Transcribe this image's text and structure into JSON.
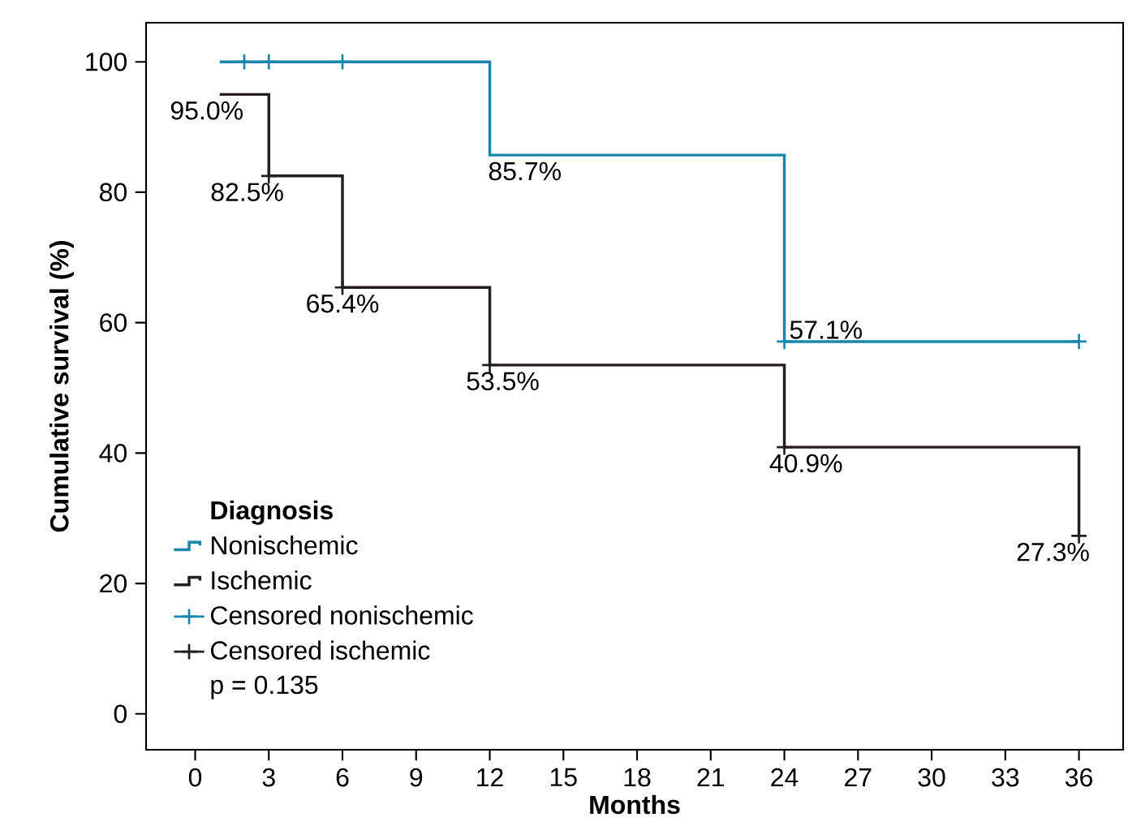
{
  "chart_data": {
    "type": "step",
    "xlabel": "Months",
    "ylabel": "Cumulative survival (%)",
    "legend_title": "Diagnosis",
    "xlim": [
      -2,
      37.8
    ],
    "ylim": [
      -5.5,
      106
    ],
    "xticks": [
      0,
      3,
      6,
      9,
      12,
      15,
      18,
      21,
      24,
      27,
      30,
      33,
      36
    ],
    "yticks": [
      0,
      20,
      40,
      60,
      80,
      100
    ],
    "grid": false,
    "legend": "bottom left",
    "series": [
      {
        "name": "Nonischemic",
        "color": "#1a87aa",
        "x": [
          1,
          12,
          24,
          36
        ],
        "values": [
          100,
          85.7,
          57.1,
          57.1
        ]
      },
      {
        "name": "Ischemic",
        "color": "#231f20",
        "x": [
          1,
          3,
          6,
          12,
          24,
          36
        ],
        "values": [
          95,
          82.5,
          65.4,
          53.5,
          40.9,
          27.3
        ]
      },
      {
        "name": "Censored nonischemic",
        "type": "scatter",
        "marker": "cross",
        "color": "#1a87aa",
        "x": [
          2,
          3,
          6,
          24,
          36
        ],
        "values": [
          100,
          100,
          100,
          57.1,
          57.1
        ]
      },
      {
        "name": "Censored ischemic",
        "type": "scatter",
        "marker": "cross",
        "color": "#231f20",
        "x": [
          3,
          6,
          12,
          24,
          36
        ],
        "values": [
          82.5,
          65.4,
          53.5,
          40.9,
          27.3
        ]
      }
    ],
    "annotations": [
      {
        "text": "95.0%",
        "x": 1,
        "y": 95
      },
      {
        "text": "82.5%",
        "x": 3,
        "y": 82.5
      },
      {
        "text": "65.4%",
        "x": 6,
        "y": 65.4
      },
      {
        "text": "53.5%",
        "x": 12,
        "y": 53.5
      },
      {
        "text": "40.9%",
        "x": 24,
        "y": 40.9
      },
      {
        "text": "27.3%",
        "x": 36,
        "y": 27.3
      },
      {
        "text": "85.7%",
        "x": 12,
        "y": 85.7
      },
      {
        "text": "57.1%",
        "x": 24,
        "y": 57.1
      },
      "p = 0.135"
    ]
  }
}
